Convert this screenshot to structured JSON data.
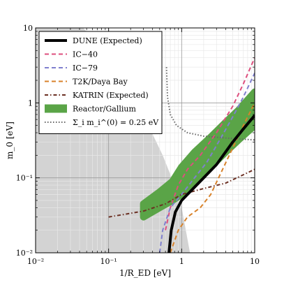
{
  "chart_data": {
    "type": "line",
    "xlabel": "1/R_ED [eV]",
    "ylabel": "m_0 [eV]",
    "x_scale": "log",
    "y_scale": "log",
    "xlim": [
      0.01,
      10
    ],
    "ylim": [
      0.01,
      10
    ],
    "grid": true,
    "legend_position": "top-left",
    "x_ticks": [
      {
        "value": 0.01,
        "label": "10⁻²"
      },
      {
        "value": 0.1,
        "label": "10⁻¹"
      },
      {
        "value": 1,
        "label": "1"
      },
      {
        "value": 10,
        "label": "10"
      }
    ],
    "y_ticks": [
      {
        "value": 0.01,
        "label": "10⁻²"
      },
      {
        "value": 0.1,
        "label": "10⁻¹"
      },
      {
        "value": 1,
        "label": "1"
      },
      {
        "value": 10,
        "label": "10"
      }
    ],
    "excluded_region": {
      "color": "#d3d3d3",
      "boundary": [
        [
          0.045,
          10
        ],
        [
          0.1,
          4.0
        ],
        [
          0.2,
          1.3
        ],
        [
          0.35,
          0.5
        ],
        [
          0.55,
          0.2
        ],
        [
          0.8,
          0.08
        ],
        [
          1.0,
          0.04
        ],
        [
          1.3,
          0.01
        ]
      ]
    },
    "series": [
      {
        "name": "DUNE (Expected)",
        "style": "solid",
        "color": "#000000",
        "points": [
          [
            0.67,
            0.01
          ],
          [
            0.72,
            0.02
          ],
          [
            0.82,
            0.035
          ],
          [
            1.0,
            0.05
          ],
          [
            1.5,
            0.075
          ],
          [
            2.0,
            0.1
          ],
          [
            3.0,
            0.15
          ],
          [
            5.0,
            0.3
          ],
          [
            7.0,
            0.45
          ],
          [
            10.0,
            0.68
          ]
        ]
      },
      {
        "name": "IC−40",
        "style": "dashed",
        "color": "#de4f7e",
        "points": [
          [
            0.6,
            0.02
          ],
          [
            0.7,
            0.04
          ],
          [
            0.9,
            0.08
          ],
          [
            1.2,
            0.13
          ],
          [
            1.8,
            0.2
          ],
          [
            3.0,
            0.4
          ],
          [
            5.0,
            0.9
          ],
          [
            7.0,
            1.8
          ],
          [
            10.0,
            4.0
          ]
        ]
      },
      {
        "name": "IC−79",
        "style": "dashed",
        "color": "#7f7fce",
        "points": [
          [
            0.5,
            0.01
          ],
          [
            0.55,
            0.02
          ],
          [
            0.7,
            0.04
          ],
          [
            1.0,
            0.06
          ],
          [
            1.5,
            0.1
          ],
          [
            2.2,
            0.16
          ],
          [
            3.5,
            0.35
          ],
          [
            5.0,
            0.65
          ],
          [
            7.0,
            1.2
          ],
          [
            10.0,
            2.5
          ]
        ]
      },
      {
        "name": "T2K/Daya Bay",
        "style": "dashed",
        "color": "#d8822a",
        "points": [
          [
            0.7,
            0.01
          ],
          [
            0.9,
            0.02
          ],
          [
            1.2,
            0.03
          ],
          [
            1.8,
            0.04
          ],
          [
            2.5,
            0.06
          ],
          [
            3.5,
            0.12
          ],
          [
            5.0,
            0.25
          ],
          [
            7.0,
            0.5
          ],
          [
            10.0,
            1.0
          ]
        ]
      },
      {
        "name": "KATRIN (Expected)",
        "style": "dash-dot",
        "color": "#6b2f22",
        "points": [
          [
            0.1,
            0.03
          ],
          [
            0.3,
            0.036
          ],
          [
            0.6,
            0.045
          ],
          [
            1.0,
            0.06
          ],
          [
            2.0,
            0.072
          ],
          [
            4.0,
            0.085
          ],
          [
            7.0,
            0.11
          ],
          [
            10.0,
            0.13
          ]
        ]
      },
      {
        "name": "Σ_i m_i^(0) = 0.25 eV",
        "style": "dotted",
        "color": "#666666",
        "points": [
          [
            0.62,
            3.0
          ],
          [
            0.64,
            1.2
          ],
          [
            0.7,
            0.7
          ],
          [
            0.85,
            0.5
          ],
          [
            1.2,
            0.4
          ],
          [
            2.0,
            0.36
          ],
          [
            4.0,
            0.34
          ],
          [
            10.0,
            0.32
          ]
        ]
      }
    ],
    "bands": [
      {
        "name": "Reactor/Gallium",
        "color": "#5aa447",
        "upper": [
          [
            0.3,
            0.045
          ],
          [
            0.5,
            0.065
          ],
          [
            0.75,
            0.09
          ],
          [
            1.0,
            0.14
          ],
          [
            1.5,
            0.22
          ],
          [
            2.5,
            0.35
          ],
          [
            4.0,
            0.55
          ],
          [
            6.0,
            0.8
          ],
          [
            10.0,
            1.4
          ]
        ],
        "lower": [
          [
            0.3,
            0.03
          ],
          [
            0.5,
            0.04
          ],
          [
            0.75,
            0.05
          ],
          [
            1.0,
            0.06
          ],
          [
            1.5,
            0.09
          ],
          [
            2.5,
            0.14
          ],
          [
            4.0,
            0.22
          ],
          [
            6.0,
            0.32
          ],
          [
            10.0,
            0.5
          ]
        ]
      }
    ],
    "legend": [
      {
        "label": "DUNE (Expected)",
        "style": "solid",
        "color": "#000000"
      },
      {
        "label": "IC−40",
        "style": "dashed",
        "color": "#de4f7e"
      },
      {
        "label": "IC−79",
        "style": "dashed",
        "color": "#7f7fce"
      },
      {
        "label": "T2K/Daya Bay",
        "style": "dashed",
        "color": "#d8822a"
      },
      {
        "label": "KATRIN (Expected)",
        "style": "dash-dot",
        "color": "#6b2f22"
      },
      {
        "label": "Reactor/Gallium",
        "style": "band",
        "color": "#5aa447"
      },
      {
        "label": "Σ_i m_i^(0) = 0.25 eV",
        "style": "dotted",
        "color": "#666666"
      }
    ]
  }
}
